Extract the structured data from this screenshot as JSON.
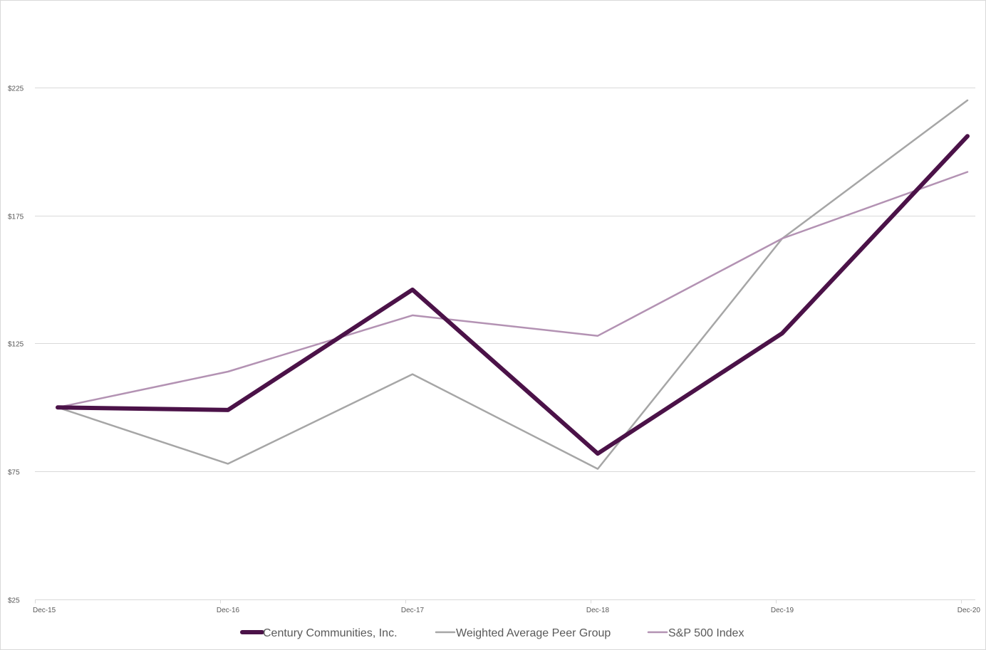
{
  "chart_data": {
    "type": "line",
    "categories": [
      "Dec-15",
      "Dec-16",
      "Dec-17",
      "Dec-18",
      "Dec-19",
      "Dec-20"
    ],
    "ylim": [
      25,
      250
    ],
    "yticks": [
      25,
      75,
      125,
      175,
      225
    ],
    "ytick_labels": [
      "$25",
      "$75",
      "$125",
      "$175",
      "$225"
    ],
    "grid": true,
    "legend_position": "bottom",
    "series": [
      {
        "name": "Century Communities, Inc.",
        "color": "#4b1248",
        "line_width": "thick",
        "values": [
          100,
          99,
          146,
          82,
          129,
          206
        ]
      },
      {
        "name": "Weighted Average Peer Group",
        "color": "#a6a6a6",
        "line_width": "normal",
        "values": [
          100,
          78,
          113,
          76,
          166,
          220
        ]
      },
      {
        "name": "S&P 500 Index",
        "color": "#b392b3",
        "line_width": "normal",
        "values": [
          100,
          114,
          136,
          128,
          166,
          192
        ]
      }
    ]
  }
}
